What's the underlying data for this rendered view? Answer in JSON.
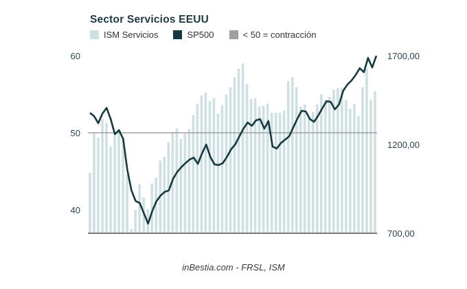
{
  "chart_data": {
    "type": "bar+line",
    "title": "Sector Servicios EEUU",
    "legend": [
      {
        "label": "ISM Servicios",
        "color": "#cfe0e3"
      },
      {
        "label": "SP500",
        "color": "#143a40"
      },
      {
        "label": "< 50 = contracción",
        "color": "#a0a0a0"
      }
    ],
    "legend_position": "top-left",
    "source": "inBestia.com - FRSL, ISM",
    "left_axis": {
      "ticks": [
        {
          "value": 60,
          "label": "60"
        },
        {
          "value": 50,
          "label": "50"
        },
        {
          "value": 40,
          "label": "40"
        }
      ],
      "range": [
        37,
        60
      ]
    },
    "right_axis": {
      "ticks": [
        {
          "value": 1700,
          "label": "1700,00"
        },
        {
          "value": 1200,
          "label": "1200,00"
        },
        {
          "value": 700,
          "label": "700,00"
        }
      ],
      "range": [
        700,
        1700
      ]
    },
    "threshold": 50,
    "series": [
      {
        "name": "ISM Servicios",
        "type": "bar",
        "axis": "left",
        "values": [
          44.8,
          49.9,
          49.4,
          51.8,
          51.3,
          48.2,
          49.7,
          50.1,
          49.4,
          44.6,
          37.5,
          40.0,
          43.3,
          41.6,
          40.1,
          43.4,
          44.2,
          46.4,
          46.9,
          48.8,
          50.1,
          50.6,
          49.2,
          49.9,
          50.5,
          52.3,
          53.8,
          54.8,
          55.2,
          54.1,
          54.5,
          52.5,
          53.6,
          55.0,
          55.9,
          57.2,
          58.3,
          59.0,
          56.3,
          54.4,
          54.5,
          53.4,
          53.5,
          53.8,
          52.6,
          52.6,
          52.6,
          52.9,
          56.7,
          57.2,
          55.9,
          53.4,
          53.7,
          52.1,
          52.7,
          53.7,
          55.0,
          54.3,
          54.7,
          55.6,
          55.8,
          55.9,
          54.3,
          53.1,
          53.7,
          52.2,
          55.9,
          58.3,
          54.3,
          55.4
        ]
      },
      {
        "name": "SP500",
        "type": "line",
        "axis": "right",
        "values": [
          1378,
          1360,
          1320,
          1374,
          1406,
          1343,
          1258,
          1281,
          1231,
          1057,
          941,
          882,
          870,
          812,
          754,
          824,
          880,
          912,
          933,
          941,
          1006,
          1045,
          1072,
          1095,
          1115,
          1126,
          1091,
          1150,
          1200,
          1130,
          1088,
          1084,
          1095,
          1130,
          1173,
          1200,
          1246,
          1290,
          1324,
          1305,
          1336,
          1343,
          1289,
          1332,
          1188,
          1177,
          1208,
          1227,
          1246,
          1297,
          1347,
          1390,
          1386,
          1343,
          1328,
          1363,
          1405,
          1444,
          1440,
          1398,
          1425,
          1502,
          1537,
          1560,
          1591,
          1630,
          1607,
          1688,
          1634,
          1700
        ]
      }
    ]
  }
}
